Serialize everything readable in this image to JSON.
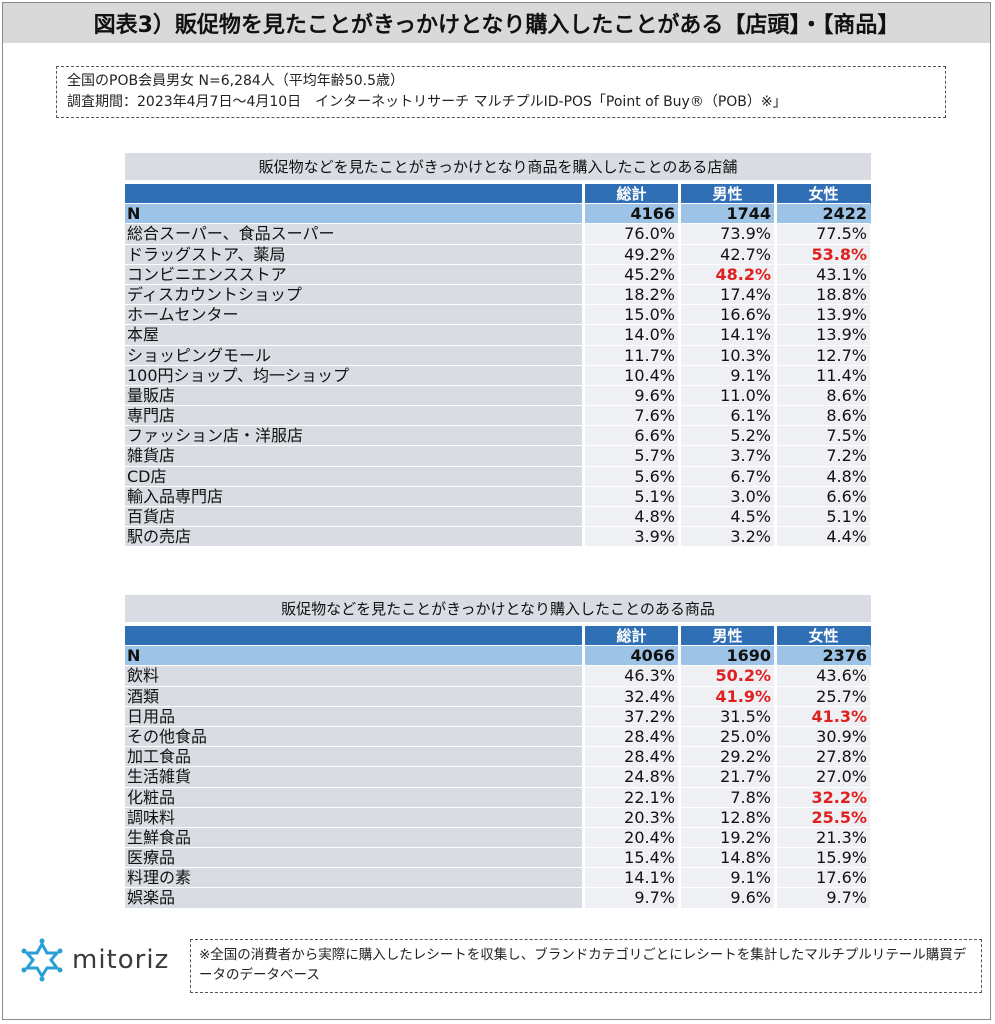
{
  "title": "図表3）販促物を見たことがきっかけとなり購入したことがある【店頭】・【商品】",
  "survey": {
    "line1": "全国のPOB会員男女 N=6,284人（平均年齢50.5歳）",
    "line2": "調査期間：2023年4月7日～4月10日　インターネットリサーチ マルチプルID-POS「Point of Buy®（POB）※」"
  },
  "table_stores": {
    "caption": "販促物などを見たことがきっかけとなり商品を購入したことのある店舗",
    "headers": [
      "総計",
      "男性",
      "女性"
    ],
    "n_row": {
      "label": "N",
      "values": [
        "4166",
        "1744",
        "2422"
      ]
    },
    "rows": [
      {
        "label": "総合スーパー、食品スーパー",
        "values": [
          "76.0%",
          "73.9%",
          "77.5%"
        ],
        "highlight": []
      },
      {
        "label": "ドラッグストア、薬局",
        "values": [
          "49.2%",
          "42.7%",
          "53.8%"
        ],
        "highlight": [
          2
        ]
      },
      {
        "label": "コンビニエンスストア",
        "values": [
          "45.2%",
          "48.2%",
          "43.1%"
        ],
        "highlight": [
          1
        ]
      },
      {
        "label": "ディスカウントショップ",
        "values": [
          "18.2%",
          "17.4%",
          "18.8%"
        ],
        "highlight": []
      },
      {
        "label": "ホームセンター",
        "values": [
          "15.0%",
          "16.6%",
          "13.9%"
        ],
        "highlight": []
      },
      {
        "label": "本屋",
        "values": [
          "14.0%",
          "14.1%",
          "13.9%"
        ],
        "highlight": []
      },
      {
        "label": "ショッピングモール",
        "values": [
          "11.7%",
          "10.3%",
          "12.7%"
        ],
        "highlight": []
      },
      {
        "label": "100円ショップ、均一ショップ",
        "values": [
          "10.4%",
          "9.1%",
          "11.4%"
        ],
        "highlight": []
      },
      {
        "label": "量販店",
        "values": [
          "9.6%",
          "11.0%",
          "8.6%"
        ],
        "highlight": []
      },
      {
        "label": "専門店",
        "values": [
          "7.6%",
          "6.1%",
          "8.6%"
        ],
        "highlight": []
      },
      {
        "label": "ファッション店・洋服店",
        "values": [
          "6.6%",
          "5.2%",
          "7.5%"
        ],
        "highlight": []
      },
      {
        "label": "雑貨店",
        "values": [
          "5.7%",
          "3.7%",
          "7.2%"
        ],
        "highlight": []
      },
      {
        "label": "CD店",
        "values": [
          "5.6%",
          "6.7%",
          "4.8%"
        ],
        "highlight": []
      },
      {
        "label": "輸入品専門店",
        "values": [
          "5.1%",
          "3.0%",
          "6.6%"
        ],
        "highlight": []
      },
      {
        "label": "百貨店",
        "values": [
          "4.8%",
          "4.5%",
          "5.1%"
        ],
        "highlight": []
      },
      {
        "label": "駅の売店",
        "values": [
          "3.9%",
          "3.2%",
          "4.4%"
        ],
        "highlight": []
      }
    ]
  },
  "table_products": {
    "caption": "販促物などを見たことがきっかけとなり購入したことのある商品",
    "headers": [
      "総計",
      "男性",
      "女性"
    ],
    "n_row": {
      "label": "N",
      "values": [
        "4066",
        "1690",
        "2376"
      ]
    },
    "rows": [
      {
        "label": "飲料",
        "values": [
          "46.3%",
          "50.2%",
          "43.6%"
        ],
        "highlight": [
          1
        ]
      },
      {
        "label": "酒類",
        "values": [
          "32.4%",
          "41.9%",
          "25.7%"
        ],
        "highlight": [
          1
        ]
      },
      {
        "label": "日用品",
        "values": [
          "37.2%",
          "31.5%",
          "41.3%"
        ],
        "highlight": [
          2
        ]
      },
      {
        "label": "その他食品",
        "values": [
          "28.4%",
          "25.0%",
          "30.9%"
        ],
        "highlight": []
      },
      {
        "label": "加工食品",
        "values": [
          "28.4%",
          "29.2%",
          "27.8%"
        ],
        "highlight": []
      },
      {
        "label": "生活雑貨",
        "values": [
          "24.8%",
          "21.7%",
          "27.0%"
        ],
        "highlight": []
      },
      {
        "label": "化粧品",
        "values": [
          "22.1%",
          "7.8%",
          "32.2%"
        ],
        "highlight": [
          2
        ]
      },
      {
        "label": "調味料",
        "values": [
          "20.3%",
          "12.8%",
          "25.5%"
        ],
        "highlight": [
          2
        ]
      },
      {
        "label": "生鮮食品",
        "values": [
          "20.4%",
          "19.2%",
          "21.3%"
        ],
        "highlight": []
      },
      {
        "label": "医療品",
        "values": [
          "15.4%",
          "14.8%",
          "15.9%"
        ],
        "highlight": []
      },
      {
        "label": "料理の素",
        "values": [
          "14.1%",
          "9.1%",
          "17.6%"
        ],
        "highlight": []
      },
      {
        "label": "娯楽品",
        "values": [
          "9.7%",
          "9.6%",
          "9.7%"
        ],
        "highlight": []
      }
    ]
  },
  "logo": {
    "text": "mitoriz",
    "icon": "mitoriz-logo-icon",
    "color": "#2a9fd6"
  },
  "note": "※全国の消費者から実際に購入したレシートを収集し、ブランドカテゴリごとにレシートを集計したマルチプルリテール購買データのデータベース",
  "colors": {
    "header_blue": "#2f6fb5",
    "n_row_blue": "#9dc3e6",
    "highlight_red": "#e02020"
  }
}
